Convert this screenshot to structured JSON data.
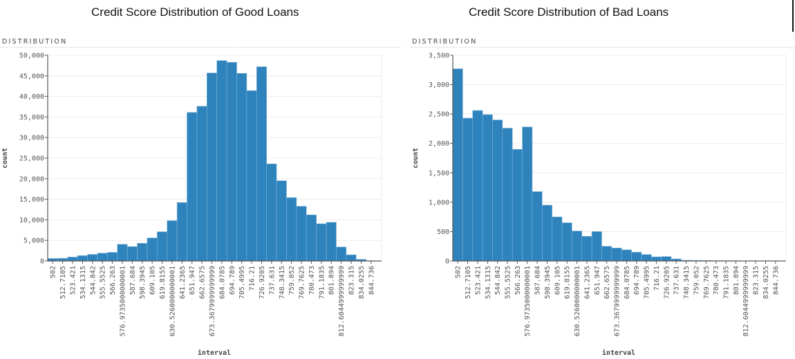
{
  "page": {
    "right_edge_marker": true
  },
  "charts": [
    {
      "title": "Credit Score Distribution of Good Loans",
      "section_label": "DISTRIBUTION",
      "xlabel": "interval",
      "ylabel": "count"
    },
    {
      "title": "Credit Score Distribution of Bad Loans",
      "section_label": "DISTRIBUTION",
      "xlabel": "interval",
      "ylabel": "count"
    }
  ],
  "colors": {
    "bar": "#2e83bd",
    "bar_edge": "#7fb3d8",
    "grid": "#ececec",
    "axis": "#555555"
  },
  "chart_data": [
    {
      "type": "bar",
      "title": "Credit Score Distribution of Good Loans",
      "section_label": "DISTRIBUTION",
      "xlabel": "interval",
      "ylabel": "count",
      "ylim": [
        0,
        50000
      ],
      "yticks": [
        0,
        5000,
        10000,
        15000,
        20000,
        25000,
        30000,
        35000,
        40000,
        45000,
        50000
      ],
      "ytick_labels": [
        "0",
        "5,000",
        "10,000",
        "15,000",
        "20,000",
        "25,000",
        "30,000",
        "35,000",
        "40,000",
        "45,000",
        "50,000"
      ],
      "grid": true,
      "categories": [
        "502",
        "512.7105",
        "523.421",
        "534.1315",
        "544.842",
        "555.5525",
        "566.263",
        "576.9735000000001",
        "587.684",
        "598.3945",
        "609.105",
        "619.8155",
        "630.5260000000001",
        "641.2365",
        "651.947",
        "662.6575",
        "673.3679999999999",
        "684.0785",
        "694.789",
        "705.4995",
        "716.21",
        "726.9205",
        "737.631",
        "748.3415",
        "759.052",
        "769.7625",
        "780.473",
        "791.1835",
        "801.894",
        "812.6044999999999",
        "823.315",
        "834.0255",
        "844.736"
      ],
      "values": [
        600,
        650,
        950,
        1300,
        1600,
        1900,
        2100,
        4050,
        3500,
        4300,
        5600,
        7100,
        9800,
        14200,
        36100,
        37600,
        45700,
        48700,
        48300,
        45600,
        41400,
        47200,
        23600,
        19500,
        15400,
        13300,
        11200,
        9050,
        9400,
        3400,
        1500,
        400,
        50
      ]
    },
    {
      "type": "bar",
      "title": "Credit Score Distribution of Bad Loans",
      "section_label": "DISTRIBUTION",
      "xlabel": "interval",
      "ylabel": "count",
      "ylim": [
        0,
        3500
      ],
      "yticks": [
        0,
        500,
        1000,
        1500,
        2000,
        2500,
        3000,
        3500
      ],
      "ytick_labels": [
        "0",
        "500",
        "1,000",
        "1,500",
        "2,000",
        "2,500",
        "3,000",
        "3,500"
      ],
      "grid": true,
      "categories": [
        "502",
        "512.7105",
        "523.421",
        "534.1315",
        "544.842",
        "555.5525",
        "566.263",
        "576.9735000000001",
        "587.684",
        "598.3945",
        "609.105",
        "619.8155",
        "630.5260000000001",
        "641.2365",
        "651.947",
        "662.6575",
        "673.3679999999999",
        "684.0785",
        "694.789",
        "705.4995",
        "716.21",
        "726.9205",
        "737.631",
        "748.3415",
        "759.052",
        "769.7625",
        "780.473",
        "791.1835",
        "801.894",
        "812.6044999999999",
        "823.315",
        "834.0255",
        "844.736"
      ],
      "values": [
        3270,
        2430,
        2560,
        2490,
        2400,
        2260,
        1900,
        2280,
        1180,
        950,
        750,
        650,
        510,
        420,
        500,
        250,
        220,
        190,
        150,
        110,
        70,
        75,
        35,
        12,
        10,
        8,
        6,
        5,
        4,
        3,
        2,
        1,
        1
      ]
    }
  ]
}
